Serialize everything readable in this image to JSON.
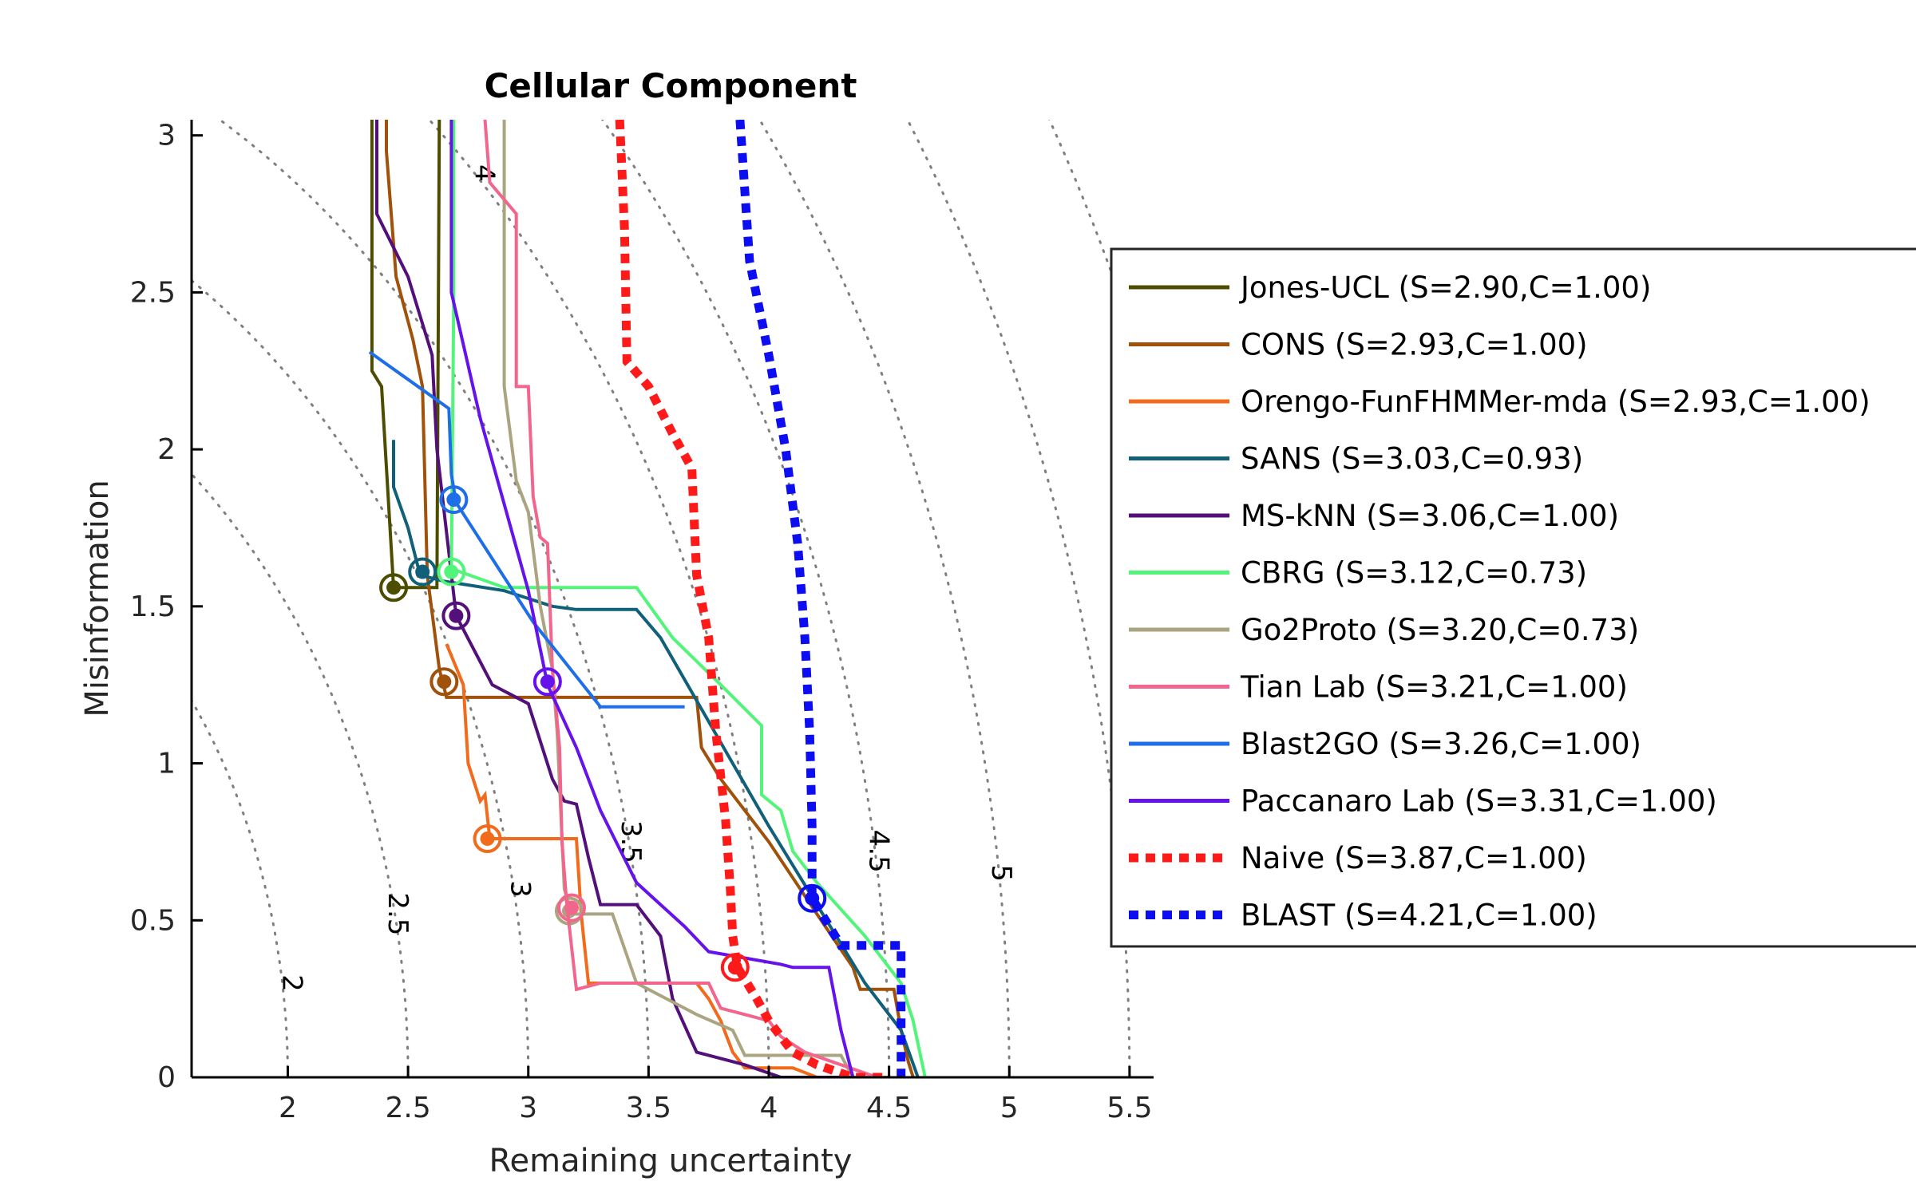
{
  "chart_data": {
    "type": "line",
    "title": "Cellular Component",
    "xlabel": "Remaining uncertainty",
    "ylabel": "Misinformation",
    "xlim": [
      1.6,
      5.6
    ],
    "ylim": [
      0,
      3.05
    ],
    "xticks": [
      "2",
      "2.5",
      "3",
      "3.5",
      "4",
      "4.5",
      "5",
      "5.5"
    ],
    "yticks": [
      "0",
      "0.5",
      "1",
      "1.5",
      "2",
      "2.5",
      "3"
    ],
    "contours": [
      {
        "label": "2",
        "value": 2,
        "label_at": [
          1.98,
          0.3
        ]
      },
      {
        "label": "2.5",
        "value": 2.5,
        "label_at": [
          2.42,
          0.52
        ]
      },
      {
        "label": "3",
        "value": 3,
        "label_at": [
          2.93,
          0.6
        ]
      },
      {
        "label": "3.5",
        "value": 3.5,
        "label_at": [
          3.39,
          0.75
        ]
      },
      {
        "label": "4",
        "value": 4,
        "label_at": [
          2.78,
          2.88
        ]
      },
      {
        "label": "4.5",
        "value": 4.5,
        "label_at": [
          4.42,
          0.72
        ]
      },
      {
        "label": "5",
        "value": 5,
        "label_at": [
          4.93,
          0.65
        ]
      }
    ],
    "extra_contours": [
      5.5,
      6
    ],
    "legend_position": "right",
    "series": [
      {
        "name": "Jones-UCL (S=2.90,C=1.00)",
        "color": "#4d4d00",
        "dash": false,
        "points": [
          [
            2.35,
            3.05
          ],
          [
            2.35,
            2.25
          ],
          [
            2.39,
            2.2
          ],
          [
            2.44,
            1.56
          ],
          [
            2.62,
            1.56
          ],
          [
            2.63,
            3.05
          ]
        ],
        "marker": [
          2.44,
          1.56
        ]
      },
      {
        "name": "CONS (S=2.93,C=1.00)",
        "color": "#a0520a",
        "dash": false,
        "points": [
          [
            2.41,
            3.05
          ],
          [
            2.41,
            2.95
          ],
          [
            2.45,
            2.55
          ],
          [
            2.52,
            2.35
          ],
          [
            2.56,
            2.2
          ],
          [
            2.58,
            1.6
          ],
          [
            2.63,
            1.3
          ],
          [
            2.66,
            1.21
          ],
          [
            3.3,
            1.21
          ],
          [
            3.7,
            1.21
          ],
          [
            3.72,
            1.05
          ],
          [
            3.8,
            0.95
          ],
          [
            4.0,
            0.75
          ],
          [
            4.2,
            0.52
          ],
          [
            4.35,
            0.35
          ],
          [
            4.38,
            0.28
          ],
          [
            4.52,
            0.28
          ],
          [
            4.55,
            0.15
          ],
          [
            4.58,
            0.05
          ],
          [
            4.6,
            0.0
          ]
        ],
        "marker": [
          2.65,
          1.26
        ]
      },
      {
        "name": "Orengo-FunFHMMer-mda (S=2.93,C=1.00)",
        "color": "#f26a1b",
        "dash": false,
        "points": [
          [
            2.66,
            1.38
          ],
          [
            2.73,
            1.25
          ],
          [
            2.75,
            1.0
          ],
          [
            2.8,
            0.88
          ],
          [
            2.82,
            0.9
          ],
          [
            2.84,
            0.76
          ],
          [
            3.2,
            0.76
          ],
          [
            3.22,
            0.52
          ],
          [
            3.25,
            0.3
          ],
          [
            3.7,
            0.3
          ],
          [
            3.75,
            0.25
          ],
          [
            3.8,
            0.18
          ],
          [
            3.85,
            0.08
          ],
          [
            3.9,
            0.03
          ],
          [
            4.1,
            0.03
          ],
          [
            4.2,
            0.0
          ],
          [
            4.5,
            0.0
          ]
        ],
        "marker": [
          2.83,
          0.76
        ]
      },
      {
        "name": "SANS (S=3.03,C=0.93)",
        "color": "#11607a",
        "dash": false,
        "points": [
          [
            2.44,
            2.03
          ],
          [
            2.44,
            1.88
          ],
          [
            2.5,
            1.75
          ],
          [
            2.55,
            1.6
          ],
          [
            2.65,
            1.58
          ],
          [
            2.9,
            1.55
          ],
          [
            3.1,
            1.5
          ],
          [
            3.2,
            1.49
          ],
          [
            3.45,
            1.49
          ],
          [
            3.55,
            1.4
          ],
          [
            3.7,
            1.2
          ],
          [
            3.85,
            1.0
          ],
          [
            4.0,
            0.8
          ],
          [
            4.2,
            0.55
          ],
          [
            4.4,
            0.3
          ],
          [
            4.55,
            0.15
          ],
          [
            4.62,
            0.0
          ]
        ],
        "marker": [
          2.56,
          1.61
        ]
      },
      {
        "name": "MS-kNN (S=3.06,C=1.00)",
        "color": "#53107a",
        "dash": false,
        "points": [
          [
            2.37,
            3.05
          ],
          [
            2.37,
            2.75
          ],
          [
            2.5,
            2.55
          ],
          [
            2.6,
            2.3
          ],
          [
            2.62,
            2.0
          ],
          [
            2.7,
            1.47
          ],
          [
            2.85,
            1.25
          ],
          [
            3.0,
            1.19
          ],
          [
            3.1,
            0.95
          ],
          [
            3.15,
            0.88
          ],
          [
            3.2,
            0.87
          ],
          [
            3.25,
            0.7
          ],
          [
            3.3,
            0.55
          ],
          [
            3.45,
            0.55
          ],
          [
            3.55,
            0.45
          ],
          [
            3.6,
            0.25
          ],
          [
            3.7,
            0.08
          ],
          [
            3.8,
            0.06
          ],
          [
            3.9,
            0.04
          ],
          [
            4.05,
            0.0
          ],
          [
            4.35,
            0.0
          ]
        ],
        "marker": [
          2.7,
          1.47
        ]
      },
      {
        "name": "CBRG (S=3.12,C=0.73)",
        "color": "#52f57a",
        "dash": false,
        "points": [
          [
            2.69,
            3.05
          ],
          [
            2.69,
            2.5
          ],
          [
            2.68,
            1.62
          ],
          [
            2.9,
            1.56
          ],
          [
            3.3,
            1.56
          ],
          [
            3.45,
            1.56
          ],
          [
            3.6,
            1.4
          ],
          [
            3.8,
            1.25
          ],
          [
            3.97,
            1.12
          ],
          [
            3.97,
            0.9
          ],
          [
            4.05,
            0.85
          ],
          [
            4.1,
            0.72
          ],
          [
            4.2,
            0.62
          ],
          [
            4.4,
            0.45
          ],
          [
            4.55,
            0.3
          ],
          [
            4.6,
            0.18
          ],
          [
            4.65,
            0.0
          ]
        ],
        "marker": [
          2.68,
          1.61
        ]
      },
      {
        "name": "Go2Proto (S=3.20,C=0.73)",
        "color": "#aaa580",
        "dash": false,
        "points": [
          [
            2.9,
            3.05
          ],
          [
            2.9,
            2.2
          ],
          [
            2.95,
            1.9
          ],
          [
            3.0,
            1.8
          ],
          [
            3.05,
            1.5
          ],
          [
            3.1,
            1.3
          ],
          [
            3.12,
            1.1
          ],
          [
            3.15,
            0.6
          ],
          [
            3.18,
            0.52
          ],
          [
            3.35,
            0.52
          ],
          [
            3.45,
            0.3
          ],
          [
            3.7,
            0.2
          ],
          [
            3.85,
            0.15
          ],
          [
            3.9,
            0.07
          ],
          [
            4.1,
            0.07
          ],
          [
            4.3,
            0.07
          ],
          [
            4.35,
            0.0
          ]
        ],
        "marker": [
          3.17,
          0.53
        ]
      },
      {
        "name": "Tian Lab (S=3.21,C=1.00)",
        "color": "#f2658c",
        "dash": false,
        "points": [
          [
            2.82,
            3.05
          ],
          [
            2.84,
            2.85
          ],
          [
            2.95,
            2.75
          ],
          [
            2.95,
            2.2
          ],
          [
            3.0,
            2.2
          ],
          [
            3.02,
            1.85
          ],
          [
            3.05,
            1.72
          ],
          [
            3.08,
            1.7
          ],
          [
            3.1,
            1.3
          ],
          [
            3.13,
            1.05
          ],
          [
            3.14,
            0.75
          ],
          [
            3.16,
            0.55
          ],
          [
            3.2,
            0.28
          ],
          [
            3.3,
            0.3
          ],
          [
            3.75,
            0.3
          ],
          [
            3.8,
            0.22
          ],
          [
            3.9,
            0.2
          ],
          [
            4.0,
            0.18
          ],
          [
            4.05,
            0.13
          ],
          [
            4.15,
            0.08
          ],
          [
            4.3,
            0.04
          ],
          [
            4.45,
            0.0
          ]
        ],
        "marker": [
          3.18,
          0.54
        ]
      },
      {
        "name": "Blast2GO (S=3.26,C=1.00)",
        "color": "#1e6ee8",
        "dash": false,
        "points": [
          [
            2.34,
            2.31
          ],
          [
            2.67,
            2.13
          ],
          [
            2.68,
            1.92
          ],
          [
            2.7,
            1.83
          ],
          [
            3.02,
            1.45
          ],
          [
            3.3,
            1.18
          ],
          [
            3.65,
            1.18
          ]
        ],
        "marker": [
          2.69,
          1.84
        ]
      },
      {
        "name": "Paccanaro Lab (S=3.31,C=1.00)",
        "color": "#6513ea",
        "dash": false,
        "points": [
          [
            2.68,
            3.05
          ],
          [
            2.68,
            2.5
          ],
          [
            2.8,
            2.1
          ],
          [
            3.0,
            1.55
          ],
          [
            3.08,
            1.25
          ],
          [
            3.2,
            1.05
          ],
          [
            3.3,
            0.85
          ],
          [
            3.45,
            0.62
          ],
          [
            3.55,
            0.55
          ],
          [
            3.65,
            0.48
          ],
          [
            3.75,
            0.4
          ],
          [
            3.9,
            0.38
          ],
          [
            4.05,
            0.36
          ],
          [
            4.1,
            0.35
          ],
          [
            4.25,
            0.35
          ],
          [
            4.3,
            0.15
          ],
          [
            4.35,
            0.0
          ]
        ],
        "marker": [
          3.08,
          1.26
        ]
      },
      {
        "name": "Naive (S=3.87,C=1.00)",
        "color": "#ff1a1a",
        "dash": true,
        "points": [
          [
            3.38,
            3.05
          ],
          [
            3.4,
            2.7
          ],
          [
            3.41,
            2.28
          ],
          [
            3.5,
            2.2
          ],
          [
            3.6,
            2.05
          ],
          [
            3.68,
            1.94
          ],
          [
            3.7,
            1.6
          ],
          [
            3.75,
            1.4
          ],
          [
            3.78,
            1.1
          ],
          [
            3.82,
            0.82
          ],
          [
            3.84,
            0.6
          ],
          [
            3.85,
            0.45
          ],
          [
            3.87,
            0.35
          ],
          [
            3.95,
            0.25
          ],
          [
            4.0,
            0.18
          ],
          [
            4.1,
            0.08
          ],
          [
            4.2,
            0.04
          ],
          [
            4.35,
            0.0
          ],
          [
            4.5,
            0.0
          ]
        ],
        "marker": [
          3.86,
          0.35
        ]
      },
      {
        "name": "BLAST (S=4.21,C=1.00)",
        "color": "#0d0df2",
        "dash": true,
        "points": [
          [
            3.88,
            3.05
          ],
          [
            3.92,
            2.6
          ],
          [
            4.0,
            2.3
          ],
          [
            4.07,
            2.0
          ],
          [
            4.12,
            1.7
          ],
          [
            4.15,
            1.4
          ],
          [
            4.17,
            1.1
          ],
          [
            4.18,
            0.8
          ],
          [
            4.18,
            0.57
          ],
          [
            4.3,
            0.42
          ],
          [
            4.55,
            0.42
          ],
          [
            4.55,
            0.0
          ]
        ],
        "marker": [
          4.18,
          0.57
        ]
      }
    ]
  }
}
